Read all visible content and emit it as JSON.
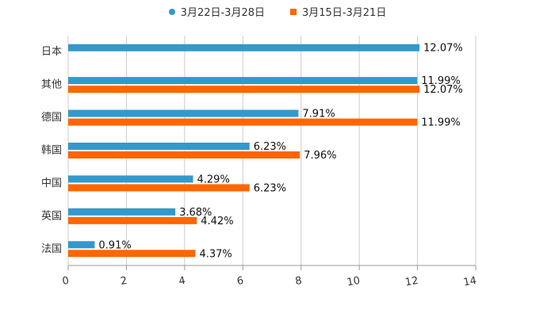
{
  "chart_data": {
    "type": "bar",
    "orientation": "horizontal",
    "categories": [
      "日本",
      "其他",
      "德国",
      "韩国",
      "中国",
      "英国",
      "法国"
    ],
    "series": [
      {
        "name": "3月22日-3月28日",
        "color": "#3399cc",
        "marker": "circle",
        "values": [
          12.07,
          11.99,
          7.91,
          6.23,
          4.29,
          3.68,
          0.91
        ],
        "labels": [
          "12.07%",
          "11.99%",
          "7.91%",
          "6.23%",
          "4.29%",
          "3.68%",
          "0.91%"
        ]
      },
      {
        "name": "3月15日-3月21日",
        "color": "#ff6600",
        "marker": "square",
        "values": [
          null,
          12.07,
          11.99,
          7.96,
          6.23,
          4.42,
          4.37
        ],
        "labels": [
          null,
          "12.07%",
          "11.99%",
          "7.96%",
          "6.23%",
          "4.42%",
          "4.37%"
        ]
      }
    ],
    "x_axis": {
      "min": 0,
      "max": 14,
      "ticks": [
        0,
        2,
        4,
        6,
        8,
        10,
        12,
        14
      ],
      "tick_labels": [
        "0",
        "2",
        "4",
        "6",
        "8",
        "10",
        "12",
        "14"
      ]
    },
    "grid": "vertical",
    "legend_position": "top-center",
    "title": "",
    "xlabel": "",
    "ylabel": ""
  }
}
